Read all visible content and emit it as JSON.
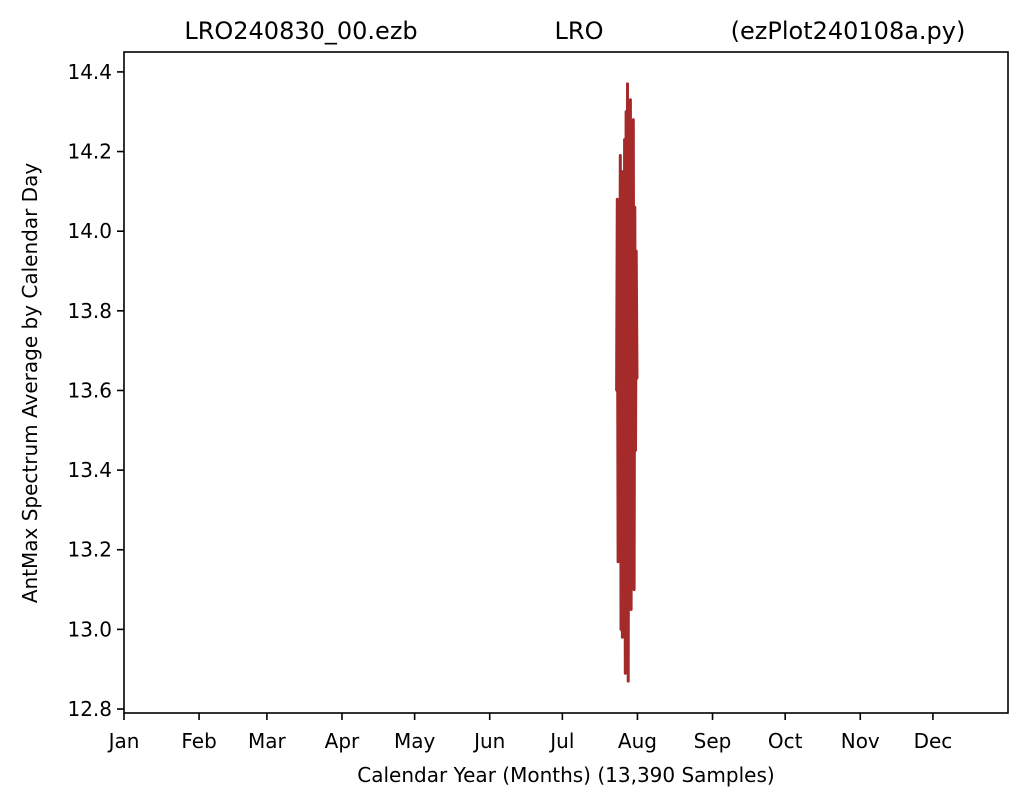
{
  "chart_data": {
    "type": "line",
    "title_parts": [
      "LRO240830_00.ezb",
      "LRO",
      "(ezPlot240108a.py)"
    ],
    "xlabel": "Calendar Year (Months) (13,390 Samples)",
    "ylabel": "AntMax Spectrum Average by Calendar Day",
    "x_ticks": [
      "Jan",
      "Feb",
      "Mar",
      "Apr",
      "May",
      "Jun",
      "Jul",
      "Aug",
      "Sep",
      "Oct",
      "Nov",
      "Dec"
    ],
    "x_tick_day_of_year": [
      1,
      32,
      60,
      91,
      121,
      152,
      182,
      213,
      244,
      274,
      305,
      335
    ],
    "xlim_day_of_year": [
      1,
      366
    ],
    "y_ticks": [
      "12.8",
      "13.0",
      "13.2",
      "13.4",
      "13.6",
      "13.8",
      "14.0",
      "14.2",
      "14.4"
    ],
    "ylim": [
      12.79,
      14.45
    ],
    "grid": false,
    "series": [
      {
        "color": "#a52a2a",
        "x_day_of_year": [
          204.4,
          204.7,
          205.0,
          205.3,
          205.6,
          205.9,
          206.2,
          206.5,
          206.8,
          207.1,
          207.4,
          207.7,
          208.0,
          208.3,
          208.6,
          208.9,
          209.2,
          209.5,
          209.8,
          210.1,
          210.4,
          210.7,
          211.0,
          211.3,
          211.6,
          211.9,
          212.2,
          212.5,
          212.8
        ],
        "y": [
          13.6,
          14.08,
          13.17,
          13.85,
          13.3,
          14.19,
          13.0,
          14.15,
          12.98,
          14.05,
          13.2,
          14.23,
          12.89,
          14.3,
          13.1,
          14.37,
          12.87,
          14.2,
          13.3,
          14.33,
          13.05,
          14.12,
          13.25,
          14.28,
          13.1,
          14.06,
          13.45,
          13.95,
          13.63
        ]
      }
    ]
  }
}
